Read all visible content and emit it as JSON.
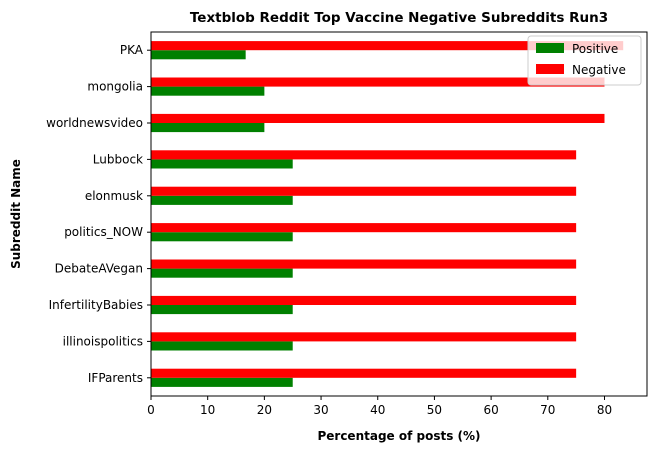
{
  "chart_data": {
    "type": "bar",
    "orientation": "horizontal",
    "title": "Textblob Reddit Top Vaccine Negative Subreddits Run3",
    "xlabel": "Percentage of posts (%)",
    "ylabel": "Subreddit Name",
    "categories": [
      "PKA",
      "mongolia",
      "worldnewsvideo",
      "Lubbock",
      "elonmusk",
      "politics_NOW",
      "DebateAVegan",
      "InfertilityBabies",
      "illinoispolitics",
      "IFParents"
    ],
    "series": [
      {
        "name": "Positive",
        "color": "#008000",
        "values": [
          16.7,
          20,
          20,
          25,
          25,
          25,
          25,
          25,
          25,
          25
        ]
      },
      {
        "name": "Negative",
        "color": "#ff0000",
        "values": [
          83.3,
          80,
          80,
          75,
          75,
          75,
          75,
          75,
          75,
          75
        ]
      }
    ],
    "xlim": [
      0,
      87.5
    ],
    "xticks": [
      0,
      10,
      20,
      30,
      40,
      50,
      60,
      70,
      80
    ],
    "grid": false,
    "legend_position": "top-right"
  }
}
